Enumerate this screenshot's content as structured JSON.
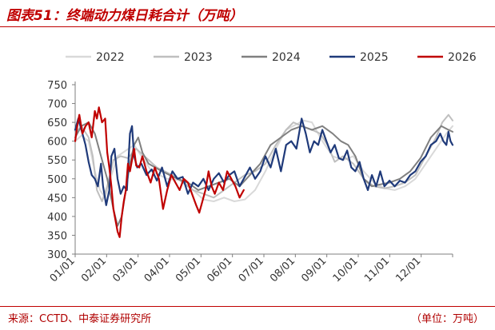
{
  "header": {
    "title": "图表51：终端动力煤日耗合计（万吨）"
  },
  "footer": {
    "source": "来源：CCTD、中泰证券研究所",
    "unit": "（单位：万吨）"
  },
  "chart_data": {
    "type": "line",
    "title": "终端动力煤日耗合计（万吨）",
    "xlabel": "",
    "ylabel": "",
    "ylim": [
      300,
      750
    ],
    "yticks": [
      300,
      350,
      400,
      450,
      500,
      550,
      600,
      650,
      700,
      750
    ],
    "x_ticks": [
      "01/01",
      "02/01",
      "03/01",
      "04/01",
      "05/01",
      "06/01",
      "07/01",
      "08/01",
      "09/01",
      "10/01",
      "11/01",
      "12/01"
    ],
    "x_unit": "day_of_year",
    "xlim": [
      1,
      366
    ],
    "legend": "top-center",
    "grid": false,
    "series": [
      {
        "name": "2022",
        "color": "#d9d9d9",
        "width": 2,
        "points": [
          [
            1,
            600
          ],
          [
            7,
            615
          ],
          [
            14,
            600
          ],
          [
            20,
            520
          ],
          [
            25,
            470
          ],
          [
            30,
            450
          ],
          [
            35,
            500
          ],
          [
            42,
            560
          ],
          [
            50,
            575
          ],
          [
            58,
            590
          ],
          [
            65,
            560
          ],
          [
            75,
            520
          ],
          [
            90,
            500
          ],
          [
            105,
            495
          ],
          [
            115,
            470
          ],
          [
            125,
            445
          ],
          [
            135,
            440
          ],
          [
            145,
            450
          ],
          [
            155,
            440
          ],
          [
            165,
            445
          ],
          [
            175,
            470
          ],
          [
            185,
            520
          ],
          [
            195,
            580
          ],
          [
            205,
            630
          ],
          [
            215,
            645
          ],
          [
            222,
            655
          ],
          [
            230,
            650
          ],
          [
            240,
            600
          ],
          [
            250,
            560
          ],
          [
            260,
            550
          ],
          [
            270,
            560
          ],
          [
            280,
            520
          ],
          [
            290,
            490
          ],
          [
            300,
            475
          ],
          [
            310,
            470
          ],
          [
            320,
            480
          ],
          [
            330,
            500
          ],
          [
            340,
            540
          ],
          [
            350,
            580
          ],
          [
            360,
            620
          ],
          [
            366,
            640
          ]
        ]
      },
      {
        "name": "2023",
        "color": "#bfbfbf",
        "width": 2,
        "points": [
          [
            1,
            620
          ],
          [
            7,
            640
          ],
          [
            14,
            610
          ],
          [
            18,
            560
          ],
          [
            22,
            470
          ],
          [
            27,
            440
          ],
          [
            32,
            480
          ],
          [
            38,
            550
          ],
          [
            45,
            560
          ],
          [
            52,
            555
          ],
          [
            60,
            580
          ],
          [
            68,
            560
          ],
          [
            80,
            530
          ],
          [
            95,
            510
          ],
          [
            105,
            490
          ],
          [
            115,
            470
          ],
          [
            125,
            460
          ],
          [
            135,
            450
          ],
          [
            145,
            470
          ],
          [
            155,
            490
          ],
          [
            165,
            510
          ],
          [
            175,
            520
          ],
          [
            185,
            540
          ],
          [
            195,
            590
          ],
          [
            205,
            630
          ],
          [
            212,
            650
          ],
          [
            220,
            640
          ],
          [
            230,
            630
          ],
          [
            238,
            620
          ],
          [
            245,
            590
          ],
          [
            252,
            545
          ],
          [
            260,
            560
          ],
          [
            270,
            540
          ],
          [
            280,
            500
          ],
          [
            290,
            480
          ],
          [
            300,
            475
          ],
          [
            310,
            480
          ],
          [
            320,
            490
          ],
          [
            330,
            510
          ],
          [
            340,
            560
          ],
          [
            350,
            610
          ],
          [
            356,
            650
          ],
          [
            362,
            670
          ],
          [
            366,
            655
          ]
        ]
      },
      {
        "name": "2024",
        "color": "#808080",
        "width": 2,
        "points": [
          [
            1,
            610
          ],
          [
            7,
            640
          ],
          [
            14,
            650
          ],
          [
            20,
            620
          ],
          [
            26,
            560
          ],
          [
            32,
            500
          ],
          [
            38,
            420
          ],
          [
            42,
            375
          ],
          [
            46,
            400
          ],
          [
            50,
            470
          ],
          [
            54,
            540
          ],
          [
            58,
            590
          ],
          [
            62,
            610
          ],
          [
            66,
            570
          ],
          [
            72,
            540
          ],
          [
            85,
            520
          ],
          [
            100,
            500
          ],
          [
            110,
            490
          ],
          [
            120,
            470
          ],
          [
            130,
            480
          ],
          [
            140,
            490
          ],
          [
            150,
            500
          ],
          [
            160,
            480
          ],
          [
            170,
            510
          ],
          [
            180,
            540
          ],
          [
            190,
            590
          ],
          [
            200,
            610
          ],
          [
            210,
            630
          ],
          [
            220,
            640
          ],
          [
            230,
            630
          ],
          [
            240,
            640
          ],
          [
            250,
            620
          ],
          [
            258,
            600
          ],
          [
            265,
            590
          ],
          [
            272,
            560
          ],
          [
            280,
            500
          ],
          [
            288,
            480
          ],
          [
            296,
            485
          ],
          [
            305,
            490
          ],
          [
            315,
            500
          ],
          [
            325,
            520
          ],
          [
            335,
            555
          ],
          [
            345,
            610
          ],
          [
            355,
            640
          ],
          [
            362,
            630
          ],
          [
            366,
            625
          ]
        ]
      },
      {
        "name": "2025",
        "color": "#1f3a7a",
        "width": 2.2,
        "points": [
          [
            1,
            630
          ],
          [
            4,
            660
          ],
          [
            8,
            620
          ],
          [
            11,
            590
          ],
          [
            14,
            545
          ],
          [
            17,
            510
          ],
          [
            20,
            500
          ],
          [
            23,
            480
          ],
          [
            26,
            540
          ],
          [
            28,
            480
          ],
          [
            31,
            430
          ],
          [
            34,
            470
          ],
          [
            36,
            560
          ],
          [
            39,
            580
          ],
          [
            42,
            500
          ],
          [
            45,
            460
          ],
          [
            48,
            480
          ],
          [
            51,
            470
          ],
          [
            54,
            620
          ],
          [
            56,
            640
          ],
          [
            58,
            560
          ],
          [
            61,
            530
          ],
          [
            65,
            540
          ],
          [
            70,
            510
          ],
          [
            75,
            525
          ],
          [
            80,
            495
          ],
          [
            85,
            530
          ],
          [
            90,
            480
          ],
          [
            95,
            520
          ],
          [
            100,
            500
          ],
          [
            105,
            505
          ],
          [
            110,
            460
          ],
          [
            115,
            490
          ],
          [
            120,
            480
          ],
          [
            125,
            500
          ],
          [
            130,
            470
          ],
          [
            135,
            500
          ],
          [
            140,
            515
          ],
          [
            145,
            490
          ],
          [
            150,
            510
          ],
          [
            155,
            520
          ],
          [
            160,
            480
          ],
          [
            165,
            505
          ],
          [
            170,
            530
          ],
          [
            175,
            500
          ],
          [
            180,
            520
          ],
          [
            185,
            560
          ],
          [
            190,
            530
          ],
          [
            195,
            580
          ],
          [
            200,
            520
          ],
          [
            205,
            590
          ],
          [
            210,
            600
          ],
          [
            215,
            580
          ],
          [
            220,
            660
          ],
          [
            224,
            620
          ],
          [
            228,
            570
          ],
          [
            232,
            600
          ],
          [
            236,
            590
          ],
          [
            240,
            630
          ],
          [
            244,
            600
          ],
          [
            248,
            570
          ],
          [
            252,
            590
          ],
          [
            256,
            555
          ],
          [
            260,
            550
          ],
          [
            264,
            575
          ],
          [
            268,
            530
          ],
          [
            272,
            520
          ],
          [
            276,
            545
          ],
          [
            280,
            500
          ],
          [
            284,
            470
          ],
          [
            288,
            510
          ],
          [
            292,
            480
          ],
          [
            296,
            520
          ],
          [
            300,
            480
          ],
          [
            305,
            495
          ],
          [
            310,
            480
          ],
          [
            315,
            495
          ],
          [
            320,
            490
          ],
          [
            325,
            510
          ],
          [
            330,
            520
          ],
          [
            335,
            545
          ],
          [
            340,
            560
          ],
          [
            345,
            590
          ],
          [
            350,
            600
          ],
          [
            354,
            620
          ],
          [
            357,
            600
          ],
          [
            360,
            590
          ],
          [
            362,
            625
          ],
          [
            364,
            600
          ],
          [
            366,
            590
          ]
        ]
      },
      {
        "name": "2026",
        "color": "#c00000",
        "width": 2.2,
        "points": [
          [
            1,
            600
          ],
          [
            3,
            640
          ],
          [
            5,
            670
          ],
          [
            8,
            620
          ],
          [
            11,
            640
          ],
          [
            14,
            650
          ],
          [
            17,
            610
          ],
          [
            20,
            680
          ],
          [
            22,
            660
          ],
          [
            24,
            690
          ],
          [
            27,
            650
          ],
          [
            30,
            660
          ],
          [
            32,
            570
          ],
          [
            34,
            530
          ],
          [
            36,
            480
          ],
          [
            38,
            420
          ],
          [
            40,
            390
          ],
          [
            42,
            360
          ],
          [
            44,
            345
          ],
          [
            46,
            400
          ],
          [
            48,
            440
          ],
          [
            50,
            470
          ],
          [
            52,
            540
          ],
          [
            54,
            520
          ],
          [
            56,
            550
          ],
          [
            58,
            580
          ],
          [
            60,
            535
          ],
          [
            63,
            530
          ],
          [
            66,
            560
          ],
          [
            70,
            520
          ],
          [
            74,
            490
          ],
          [
            78,
            530
          ],
          [
            82,
            500
          ],
          [
            86,
            420
          ],
          [
            90,
            470
          ],
          [
            94,
            510
          ],
          [
            98,
            490
          ],
          [
            102,
            470
          ],
          [
            106,
            500
          ],
          [
            110,
            490
          ],
          [
            114,
            460
          ],
          [
            118,
            430
          ],
          [
            121,
            410
          ],
          [
            124,
            440
          ],
          [
            127,
            470
          ],
          [
            130,
            520
          ],
          [
            133,
            480
          ],
          [
            136,
            460
          ],
          [
            140,
            490
          ],
          [
            144,
            470
          ],
          [
            148,
            520
          ],
          [
            152,
            500
          ],
          [
            156,
            480
          ],
          [
            160,
            450
          ],
          [
            164,
            470
          ]
        ]
      }
    ]
  }
}
